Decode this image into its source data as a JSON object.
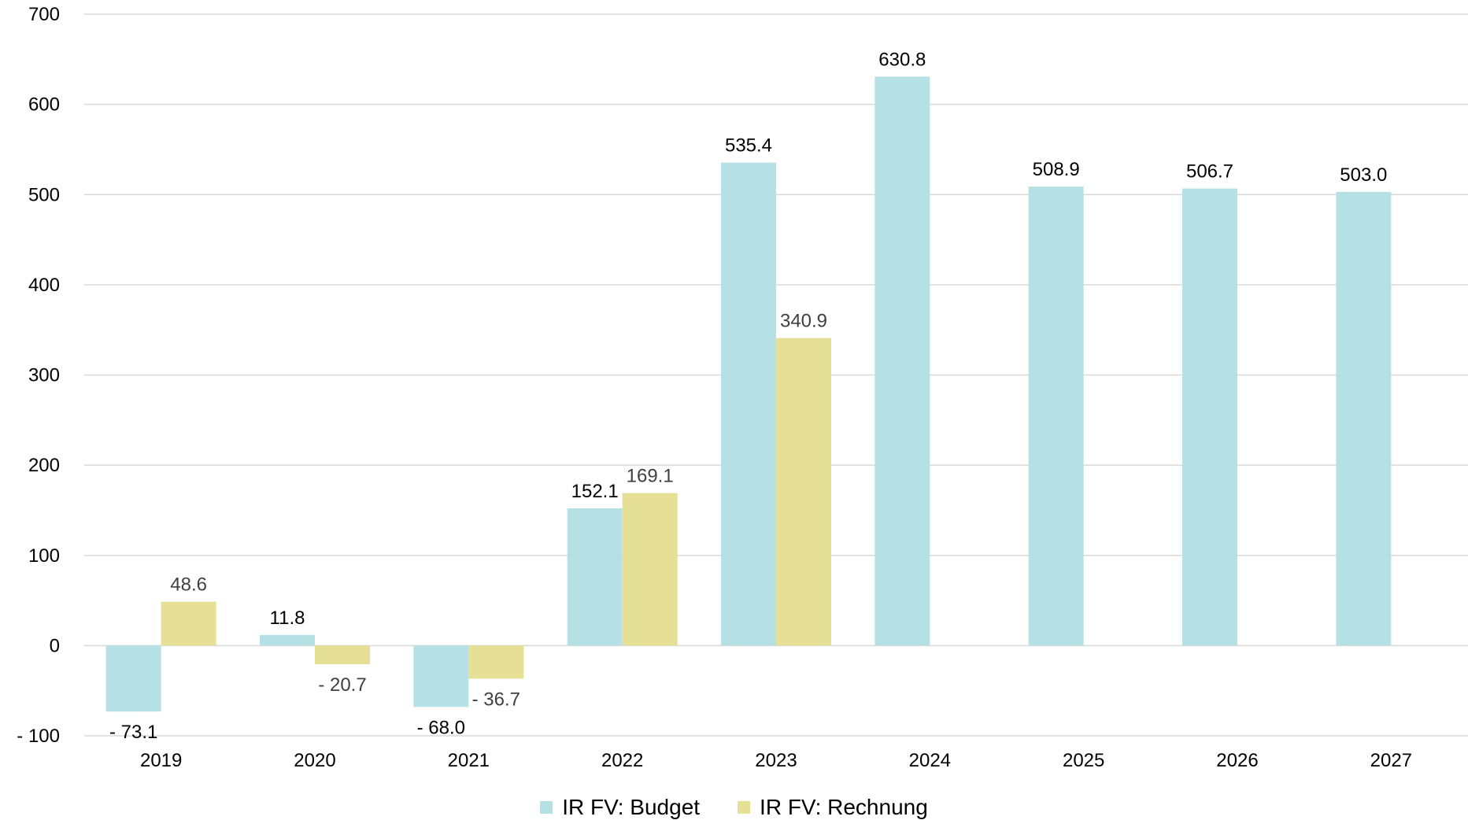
{
  "chart_data": {
    "type": "bar",
    "categories": [
      "2019",
      "2020",
      "2021",
      "2022",
      "2023",
      "2024",
      "2025",
      "2026",
      "2027"
    ],
    "series": [
      {
        "name": "IR FV: Budget",
        "color": "#b6e1e4",
        "values": [
          -73.1,
          11.8,
          -68.0,
          152.1,
          535.4,
          630.8,
          508.9,
          506.7,
          503.0
        ],
        "labels": [
          "- 73.1",
          "11.8",
          "- 68.0",
          "152.1",
          "535.4",
          "630.8",
          "508.9",
          "506.7",
          "503.0"
        ]
      },
      {
        "name": "IR FV: Rechnung",
        "color": "#e6df96",
        "values": [
          48.6,
          -20.7,
          -36.7,
          169.1,
          340.9,
          null,
          null,
          null,
          null
        ],
        "labels": [
          "48.6",
          "- 20.7",
          "- 36.7",
          "169.1",
          "340.9",
          null,
          null,
          null,
          null
        ]
      }
    ],
    "y_ticks": [
      700,
      600,
      500,
      400,
      300,
      200,
      100,
      0,
      -100
    ],
    "y_tick_labels": [
      "700",
      "600",
      "500",
      "400",
      "300",
      "200",
      "100",
      "0",
      "- 100"
    ],
    "ylim": [
      -100,
      700
    ],
    "grid": true,
    "legend_position": "bottom-center",
    "title": "",
    "xlabel": "",
    "ylabel": ""
  }
}
